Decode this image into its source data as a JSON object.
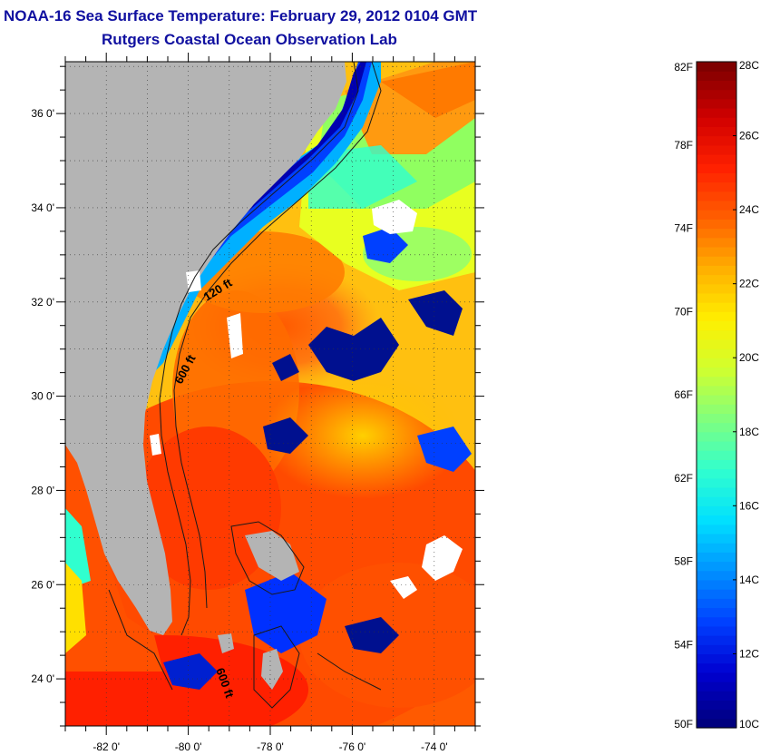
{
  "header": {
    "title": "NOAA-16 Sea Surface Temperature:  February 29, 2012 0104 GMT",
    "subtitle": "Rutgers Coastal Ocean Observation Lab"
  },
  "map": {
    "lat_ticks": [
      {
        "value": 36,
        "label": "36 0'"
      },
      {
        "value": 34,
        "label": "34 0'"
      },
      {
        "value": 32,
        "label": "32 0'"
      },
      {
        "value": 30,
        "label": "30 0'"
      },
      {
        "value": 28,
        "label": "28 0'"
      },
      {
        "value": 26,
        "label": "26 0'"
      },
      {
        "value": 24,
        "label": "24 0'"
      }
    ],
    "lon_ticks": [
      {
        "value": -82,
        "label": "-82 0'"
      },
      {
        "value": -80,
        "label": "-80 0'"
      },
      {
        "value": -78,
        "label": "-78 0'"
      },
      {
        "value": -76,
        "label": "-76 0'"
      },
      {
        "value": -74,
        "label": "-74 0'"
      }
    ],
    "lat_range": [
      23.0,
      37.1
    ],
    "lon_range": [
      -83.0,
      -73.0
    ],
    "contour_labels": [
      "120 ft",
      "600 ft",
      "600 ft"
    ],
    "colors": {
      "land": "#b4b4b4",
      "cloud": "#ffffff",
      "contour": "#1a1a1a"
    }
  },
  "colorbar": {
    "fahrenheit_labels": [
      "82F",
      "78F",
      "74F",
      "70F",
      "66F",
      "62F",
      "58F",
      "54F",
      "50F"
    ],
    "celsius_labels": [
      "28C",
      "26C",
      "24C",
      "22C",
      "20C",
      "18C",
      "16C",
      "14C",
      "12C",
      "10C"
    ],
    "range_c": [
      10,
      28
    ],
    "stops": [
      "#00007f",
      "#0000d0",
      "#0040ff",
      "#0090ff",
      "#00dfff",
      "#30ffcf",
      "#7fff7f",
      "#cfff30",
      "#ffef00",
      "#ffaf00",
      "#ff6000",
      "#ff2000",
      "#d00000",
      "#7f0000"
    ]
  }
}
